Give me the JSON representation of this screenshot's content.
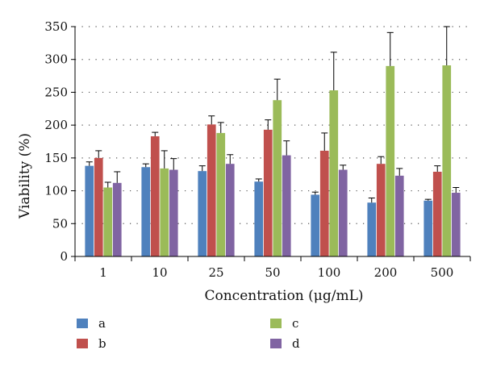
{
  "chart_data": {
    "type": "bar",
    "title": "",
    "xlabel": "Concentration (μg/mL)",
    "ylabel": "Viability (%)",
    "ylim": [
      0,
      350
    ],
    "yticks": [
      0,
      50,
      100,
      150,
      200,
      250,
      300,
      350
    ],
    "grid": "horizontal dotted",
    "legend_position": "bottom",
    "error_bars": true,
    "categories": [
      "1",
      "10",
      "25",
      "50",
      "100",
      "200",
      "500"
    ],
    "series": [
      {
        "name": "a",
        "color": "#4f81bd",
        "values": [
          138,
          136,
          130,
          114,
          94,
          82,
          85
        ],
        "errors": [
          6,
          5,
          8,
          4,
          4,
          7,
          2
        ]
      },
      {
        "name": "b",
        "color": "#c0504d",
        "values": [
          150,
          183,
          201,
          193,
          161,
          141,
          129
        ],
        "errors": [
          11,
          6,
          13,
          15,
          27,
          11,
          9
        ]
      },
      {
        "name": "c",
        "color": "#9bbb59",
        "values": [
          105,
          134,
          188,
          238,
          253,
          290,
          291
        ],
        "errors": [
          8,
          27,
          16,
          32,
          58,
          51,
          59
        ]
      },
      {
        "name": "d",
        "color": "#8064a2",
        "values": [
          112,
          132,
          141,
          154,
          132,
          123,
          97
        ],
        "errors": [
          17,
          17,
          14,
          22,
          7,
          11,
          8
        ]
      }
    ]
  }
}
